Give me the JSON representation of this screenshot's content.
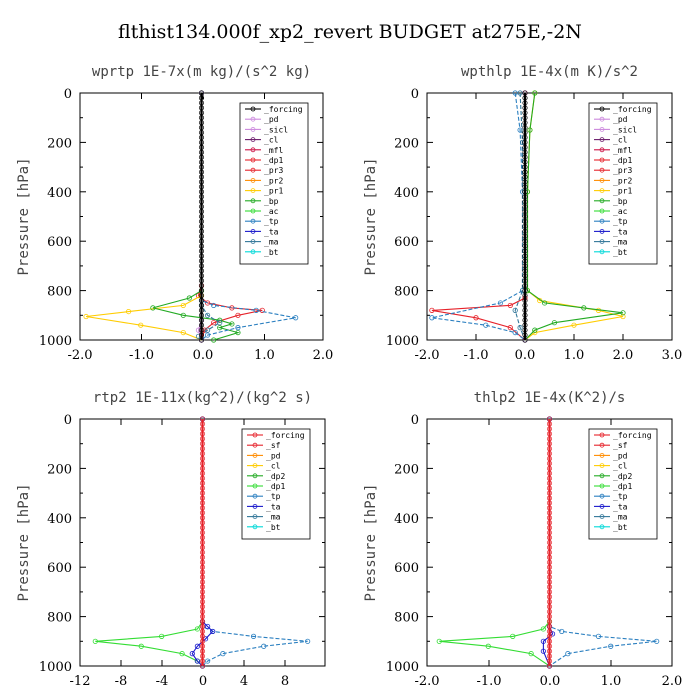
{
  "figure_title": "flthist134.000f_xp2_revert  BUDGET at275E,-2N",
  "colors": {
    "black": "#000000",
    "violet": "#cc88dd",
    "purple": "#6a1a6a",
    "crimson": "#cc1144",
    "red": "#e6222a",
    "orange": "#ff8c00",
    "gold": "#ffcc00",
    "green": "#22aa22",
    "lime": "#33dd33",
    "steel": "#2a7fc0",
    "navy": "#1a1acc",
    "teal": "#337799",
    "cyan": "#00d8d8"
  },
  "chart_data": [
    {
      "id": "wprtp",
      "type": "line",
      "title": "wprtp   1E-7x(m kg)/(s^2 kg)",
      "ylabel": "Pressure [hPa]",
      "xlim": [
        -2.0,
        2.0
      ],
      "xticks": [
        "-2.0",
        "-1.0",
        "0.0",
        "1.0",
        "2.0"
      ],
      "ylim": [
        1000,
        0
      ],
      "yticks": [
        "0",
        "200",
        "400",
        "600",
        "800",
        "1000"
      ],
      "legend": [
        "_forcing",
        "_pd",
        "_sicl",
        "_cl",
        "_mfl",
        "_dp1",
        "_pr3",
        "_pr2",
        "_pr1",
        "_bp",
        "_ac",
        "_tp",
        "_ta",
        "_ma",
        "_bt"
      ],
      "series": [
        {
          "name": "_dp1",
          "color": "#e6222a",
          "x": [
            0,
            0,
            -0.05,
            0.1,
            0.5,
            1.0,
            0.6,
            0.2,
            0.05,
            0
          ],
          "y": [
            0,
            780,
            820,
            850,
            870,
            880,
            900,
            930,
            960,
            1000
          ]
        },
        {
          "name": "_pr1",
          "color": "#ffcc00",
          "x": [
            0,
            0,
            -0.3,
            -1.2,
            -1.9,
            -1.0,
            -0.3,
            0
          ],
          "y": [
            0,
            820,
            860,
            885,
            905,
            940,
            970,
            1000
          ]
        },
        {
          "name": "_bp",
          "color": "#22aa22",
          "x": [
            0,
            0,
            -0.2,
            -0.8,
            -0.3,
            0.3,
            0.5,
            0.3,
            0.6,
            0.2
          ],
          "y": [
            0,
            800,
            830,
            870,
            900,
            920,
            935,
            950,
            970,
            1000
          ]
        },
        {
          "name": "_tp",
          "color": "#2a7fc0",
          "x": [
            0,
            0,
            0.2,
            0.9,
            1.55,
            0.6,
            0.1,
            0
          ],
          "y": [
            0,
            840,
            860,
            880,
            910,
            950,
            980,
            1000
          ]
        },
        {
          "name": "_ma",
          "color": "#337799",
          "x": [
            0,
            0,
            0.1,
            0.3,
            0.1,
            -0.05,
            0
          ],
          "y": [
            0,
            860,
            900,
            930,
            960,
            985,
            1000
          ]
        },
        {
          "name": "_pd",
          "color": "#cc88dd",
          "x": [
            0,
            0,
            -0.05,
            0
          ],
          "y": [
            0,
            920,
            960,
            1000
          ]
        },
        {
          "name": "_forcing",
          "color": "#000000",
          "x": [
            0,
            0
          ],
          "y": [
            0,
            1000
          ]
        }
      ]
    },
    {
      "id": "wpthlp",
      "type": "line",
      "title": "wpthlp   1E-4x(m K)/s^2",
      "ylabel": "Pressure [hPa]",
      "xlim": [
        -2.0,
        3.0
      ],
      "xticks": [
        "-2.0",
        "-1.0",
        "0.0",
        "1.0",
        "2.0",
        "3.0"
      ],
      "ylim": [
        1000,
        0
      ],
      "yticks": [
        "0",
        "200",
        "400",
        "600",
        "800",
        "1000"
      ],
      "legend": [
        "_forcing",
        "_pd",
        "_sicl",
        "_cl",
        "_mfl",
        "_dp1",
        "_pr3",
        "_pr2",
        "_pr1",
        "_bp",
        "_ac",
        "_tp",
        "_ta",
        "_ma",
        "_bt"
      ],
      "series": [
        {
          "name": "_pr1",
          "color": "#ffcc00",
          "x": [
            0.2,
            0.1,
            0.05,
            0.05,
            0.3,
            1.5,
            2.0,
            1.0,
            0.2,
            0
          ],
          "y": [
            0,
            150,
            400,
            800,
            840,
            880,
            905,
            940,
            970,
            1000
          ]
        },
        {
          "name": "_bp",
          "color": "#22aa22",
          "x": [
            0.2,
            0.1,
            0.05,
            0.05,
            0.4,
            1.2,
            2.0,
            0.6,
            0.2,
            0
          ],
          "y": [
            0,
            150,
            400,
            800,
            850,
            870,
            890,
            930,
            960,
            1000
          ]
        },
        {
          "name": "_dp1",
          "color": "#e6222a",
          "x": [
            0,
            0,
            -0.3,
            -1.9,
            -1.0,
            -0.3,
            0
          ],
          "y": [
            0,
            830,
            860,
            880,
            910,
            950,
            1000
          ]
        },
        {
          "name": "_tp",
          "color": "#2a7fc0",
          "x": [
            -0.2,
            -0.1,
            -0.05,
            -0.05,
            -0.5,
            -1.9,
            -0.8,
            -0.2,
            0
          ],
          "y": [
            0,
            150,
            400,
            800,
            850,
            910,
            940,
            970,
            1000
          ]
        },
        {
          "name": "_ma",
          "color": "#337799",
          "x": [
            -0.1,
            -0.05,
            -0.05,
            -0.2,
            -0.1,
            0
          ],
          "y": [
            0,
            200,
            800,
            880,
            950,
            1000
          ]
        },
        {
          "name": "_pd",
          "color": "#cc88dd",
          "x": [
            0,
            0
          ],
          "y": [
            0,
            1000
          ]
        },
        {
          "name": "_forcing",
          "color": "#000000",
          "x": [
            0,
            0
          ],
          "y": [
            0,
            1000
          ]
        }
      ]
    },
    {
      "id": "rtp2",
      "type": "line",
      "title": "rtp2   1E-11x(kg^2)/(kg^2 s)",
      "ylabel": "Pressure [hPa]",
      "xlim": [
        -12,
        12
      ],
      "xticks": [
        "-12",
        "-8",
        "-4",
        "0",
        "4",
        "8"
      ],
      "ylim": [
        1000,
        0
      ],
      "yticks": [
        "0",
        "200",
        "400",
        "600",
        "800",
        "1000"
      ],
      "legend": [
        "_forcing",
        "_sf",
        "_pd",
        "_cl",
        "_dp2",
        "_dp1",
        "_tp",
        "_ta",
        "_ma",
        "_bt"
      ],
      "series": [
        {
          "name": "_dp1",
          "color": "#33dd33",
          "x": [
            0,
            0,
            -0.5,
            -4,
            -10.5,
            -6,
            -2,
            -0.5,
            0
          ],
          "y": [
            0,
            820,
            850,
            880,
            900,
            920,
            950,
            980,
            1000
          ]
        },
        {
          "name": "_tp",
          "color": "#2a7fc0",
          "x": [
            0,
            0,
            1,
            5,
            10.3,
            6,
            2,
            0.5,
            0
          ],
          "y": [
            0,
            840,
            860,
            880,
            900,
            920,
            950,
            980,
            1000
          ]
        },
        {
          "name": "_ta",
          "color": "#1a1acc",
          "x": [
            0,
            0,
            0.5,
            1.0,
            0.3,
            -0.5,
            -1.0,
            -0.5,
            0
          ],
          "y": [
            0,
            820,
            840,
            860,
            890,
            920,
            950,
            980,
            1000
          ]
        },
        {
          "name": "_forcing",
          "color": "#e6222a",
          "x": [
            0,
            0
          ],
          "y": [
            0,
            1000
          ]
        }
      ]
    },
    {
      "id": "thlp2",
      "type": "line",
      "title": "thlp2   1E-4x(K^2)/s",
      "ylabel": "Pressure [hPa]",
      "xlim": [
        -2.0,
        2.0
      ],
      "xticks": [
        "-2.0",
        "-1.0",
        "0.0",
        "1.0",
        "2.0"
      ],
      "ylim": [
        1000,
        0
      ],
      "yticks": [
        "0",
        "200",
        "400",
        "600",
        "800",
        "1000"
      ],
      "legend": [
        "_forcing",
        "_sf",
        "_pd",
        "_cl",
        "_dp2",
        "_dp1",
        "_tp",
        "_ta",
        "_ma",
        "_bt"
      ],
      "series": [
        {
          "name": "_dp1",
          "color": "#33dd33",
          "x": [
            0,
            0,
            -0.1,
            -0.6,
            -1.8,
            -1.0,
            -0.3,
            0
          ],
          "y": [
            0,
            820,
            850,
            880,
            900,
            920,
            950,
            1000
          ]
        },
        {
          "name": "_tp",
          "color": "#2a7fc0",
          "x": [
            0,
            0,
            0.2,
            0.8,
            1.75,
            1.0,
            0.3,
            0
          ],
          "y": [
            0,
            840,
            860,
            880,
            900,
            920,
            950,
            1000
          ]
        },
        {
          "name": "_ta",
          "color": "#1a1acc",
          "x": [
            0,
            0,
            0.05,
            -0.1,
            -0.1,
            0
          ],
          "y": [
            0,
            840,
            870,
            900,
            940,
            1000
          ]
        },
        {
          "name": "_forcing",
          "color": "#e6222a",
          "x": [
            0,
            0
          ],
          "y": [
            0,
            1000
          ]
        }
      ]
    }
  ]
}
